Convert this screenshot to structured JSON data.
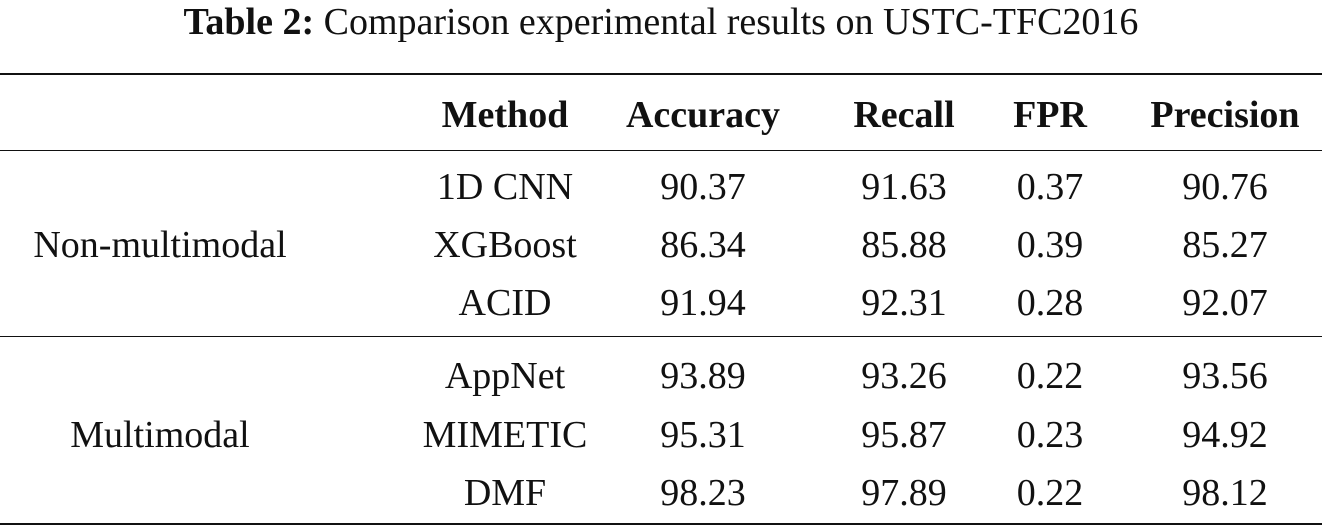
{
  "caption": {
    "label": "Table 2:",
    "text": "Comparison experimental results on USTC-TFC2016"
  },
  "table": {
    "headers": [
      "Method",
      "Accuracy",
      "Recall",
      "FPR",
      "Precision"
    ],
    "groups": [
      {
        "name": "Non-multimodal",
        "rows": [
          [
            "1D CNN",
            "90.37",
            "91.63",
            "0.37",
            "90.76"
          ],
          [
            "XGBoost",
            "86.34",
            "85.88",
            "0.39",
            "85.27"
          ],
          [
            "ACID",
            "91.94",
            "92.31",
            "0.28",
            "92.07"
          ]
        ]
      },
      {
        "name": "Multimodal",
        "rows": [
          [
            "AppNet",
            "93.89",
            "93.26",
            "0.22",
            "93.56"
          ],
          [
            "MIMETIC",
            "95.31",
            "95.87",
            "0.23",
            "94.92"
          ],
          [
            "DMF",
            "98.23",
            "97.89",
            "0.22",
            "98.12"
          ]
        ]
      }
    ]
  }
}
